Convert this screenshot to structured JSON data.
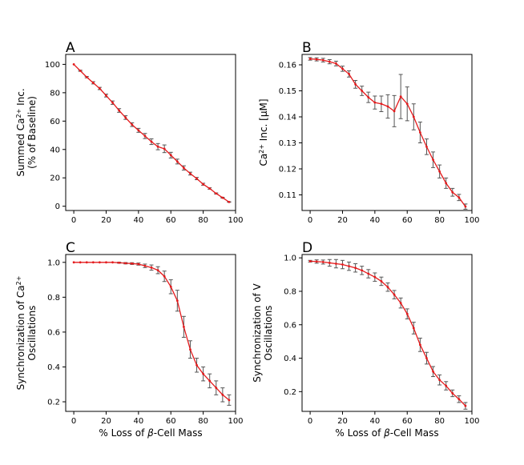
{
  "chart_data": [
    {
      "panel": "A",
      "type": "line",
      "xlabel": "",
      "ylabel_lines": [
        "Summed Ca$^{2+}$ Inc.",
        "(% of Baseline)"
      ],
      "xlim": [
        -5,
        100
      ],
      "ylim": [
        -3,
        107
      ],
      "xticks": [
        0,
        20,
        40,
        60,
        80,
        100
      ],
      "yticks": [
        0,
        20,
        40,
        60,
        80,
        100
      ],
      "xticklabels": [
        "0",
        "20",
        "40",
        "60",
        "80",
        "100"
      ],
      "yticklabels": [
        "0",
        "20",
        "40",
        "60",
        "80",
        "100"
      ],
      "x": [
        0,
        4,
        8,
        12,
        16,
        20,
        24,
        28,
        32,
        36,
        40,
        44,
        48,
        52,
        56,
        60,
        64,
        68,
        72,
        76,
        80,
        84,
        88,
        92,
        96
      ],
      "y": [
        100,
        95.5,
        91,
        87,
        83,
        78,
        73,
        67.5,
        62.5,
        57.5,
        53.5,
        49.5,
        45.5,
        42,
        40.5,
        36,
        31.5,
        27,
        23,
        19.5,
        15.5,
        12.5,
        9,
        6,
        3
      ],
      "err": [
        0,
        0.4,
        0.5,
        0.8,
        0.8,
        1,
        1.2,
        1.3,
        1.3,
        1.3,
        1.4,
        1.8,
        2,
        2.2,
        2.7,
        2,
        1.7,
        1.5,
        1,
        0.8,
        0.7,
        0.5,
        0.4,
        0.3,
        0.2
      ]
    },
    {
      "panel": "B",
      "type": "line",
      "xlabel": "",
      "ylabel_lines": [
        "Ca$^{2+}$ Inc. [μM]"
      ],
      "xlim": [
        -5,
        100
      ],
      "ylim": [
        0.104,
        0.164
      ],
      "xticks": [
        0,
        20,
        40,
        60,
        80,
        100
      ],
      "yticks": [
        0.11,
        0.12,
        0.13,
        0.14,
        0.15,
        0.16
      ],
      "xticklabels": [
        "0",
        "20",
        "40",
        "60",
        "80",
        "100"
      ],
      "yticklabels": [
        "0.11",
        "0.12",
        "0.13",
        "0.14",
        "0.15",
        "0.16"
      ],
      "x": [
        0,
        4,
        8,
        12,
        16,
        20,
        24,
        28,
        32,
        36,
        40,
        44,
        48,
        52,
        56,
        60,
        64,
        68,
        72,
        76,
        80,
        84,
        88,
        92,
        96
      ],
      "y": [
        0.1623,
        0.1621,
        0.1618,
        0.1612,
        0.1605,
        0.1585,
        0.1565,
        0.1525,
        0.15,
        0.1475,
        0.1455,
        0.145,
        0.144,
        0.1422,
        0.1478,
        0.145,
        0.14,
        0.134,
        0.1285,
        0.1235,
        0.119,
        0.1145,
        0.111,
        0.109,
        0.1055
      ],
      "err": [
        0.0005,
        0.0006,
        0.0007,
        0.0008,
        0.0009,
        0.001,
        0.0012,
        0.0015,
        0.0018,
        0.002,
        0.0025,
        0.003,
        0.0045,
        0.006,
        0.0085,
        0.0065,
        0.005,
        0.004,
        0.003,
        0.003,
        0.0025,
        0.002,
        0.0015,
        0.0012,
        0.001
      ]
    },
    {
      "panel": "C",
      "type": "line",
      "xlabel": "% Loss of β-Cell Mass",
      "ylabel_lines": [
        "Synchronization of Ca$^{2+}$",
        "Oscillations"
      ],
      "xlim": [
        -5,
        100
      ],
      "ylim": [
        0.145,
        1.045
      ],
      "xticks": [
        0,
        20,
        40,
        60,
        80,
        100
      ],
      "yticks": [
        0.2,
        0.4,
        0.6,
        0.8,
        1.0
      ],
      "xticklabels": [
        "0",
        "20",
        "40",
        "60",
        "80",
        "100"
      ],
      "yticklabels": [
        "0.2",
        "0.4",
        "0.6",
        "0.8",
        "1.0"
      ],
      "x": [
        0,
        4,
        8,
        12,
        16,
        20,
        24,
        28,
        32,
        36,
        40,
        44,
        48,
        52,
        56,
        60,
        64,
        68,
        72,
        76,
        80,
        84,
        88,
        92,
        96
      ],
      "y": [
        1.0,
        1.0,
        1.0,
        1.0,
        1.0,
        1.0,
        1.0,
        0.998,
        0.995,
        0.993,
        0.99,
        0.98,
        0.97,
        0.955,
        0.92,
        0.86,
        0.78,
        0.63,
        0.5,
        0.41,
        0.36,
        0.32,
        0.28,
        0.24,
        0.21
      ],
      "err": [
        0,
        0,
        0,
        0,
        0,
        0,
        0,
        0.003,
        0.004,
        0.005,
        0.006,
        0.01,
        0.015,
        0.02,
        0.03,
        0.04,
        0.06,
        0.06,
        0.05,
        0.04,
        0.04,
        0.04,
        0.04,
        0.04,
        0.03
      ]
    },
    {
      "panel": "D",
      "type": "line",
      "xlabel": "% Loss of β-Cell Mass",
      "ylabel_lines": [
        "Synchronization of V",
        "Oscillations"
      ],
      "xlim": [
        -5,
        100
      ],
      "ylim": [
        0.082,
        1.02
      ],
      "xticks": [
        0,
        20,
        40,
        60,
        80,
        100
      ],
      "yticks": [
        0.2,
        0.4,
        0.6,
        0.8,
        1.0
      ],
      "xticklabels": [
        "0",
        "20",
        "40",
        "60",
        "80",
        "100"
      ],
      "yticklabels": [
        "0.2",
        "0.4",
        "0.6",
        "0.8",
        "1.0"
      ],
      "x": [
        0,
        4,
        8,
        12,
        16,
        20,
        24,
        28,
        32,
        36,
        40,
        44,
        48,
        52,
        56,
        60,
        64,
        68,
        72,
        76,
        80,
        84,
        88,
        92,
        96
      ],
      "y": [
        0.98,
        0.978,
        0.975,
        0.97,
        0.965,
        0.96,
        0.95,
        0.94,
        0.925,
        0.905,
        0.885,
        0.86,
        0.825,
        0.78,
        0.73,
        0.665,
        0.58,
        0.48,
        0.4,
        0.32,
        0.27,
        0.235,
        0.19,
        0.155,
        0.115
      ],
      "err": [
        0.005,
        0.01,
        0.012,
        0.02,
        0.025,
        0.025,
        0.025,
        0.025,
        0.025,
        0.025,
        0.025,
        0.025,
        0.025,
        0.025,
        0.03,
        0.03,
        0.035,
        0.04,
        0.035,
        0.03,
        0.03,
        0.025,
        0.02,
        0.02,
        0.02
      ]
    }
  ]
}
